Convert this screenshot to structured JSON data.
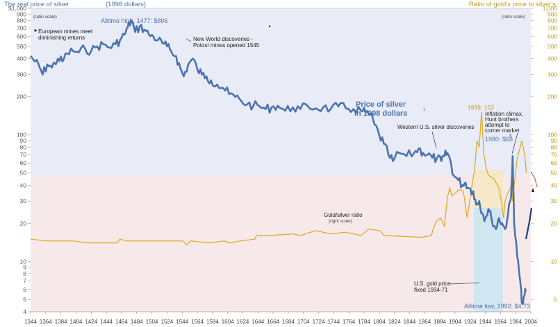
{
  "header": {
    "left_title": "The real price of silver",
    "left_subtitle": "(1998 dollars)",
    "left_scale_note": "(ratio scale)",
    "right_title": "Ratio of gold's price to silver's",
    "right_scale_note": "(ratio scale)"
  },
  "annotations": {
    "alltime_high": "Alltime high, 1477: $806",
    "european_line1": "European mines meet",
    "european_line2": "diminishing returns",
    "newworld_line1": "New World discoveries -",
    "newworld_line2": "Potosí mines opened 1545",
    "price_label_line1": "Price of silver",
    "price_label_line2": "in 1998 dollars",
    "price_label_mark": "¹",
    "western": "Western U.S. silver discoveries",
    "ratio1939": "1939: 153",
    "inflation_line1": "Inflation climax,",
    "inflation_line2": "Hunt brothers",
    "inflation_line3": "attempt to",
    "inflation_line4": "corner market",
    "ratio1980": "1980: $68",
    "ratio1980_mark": "²",
    "goldsilver_line1": "Gold/silver ratio",
    "goldsilver_line2": "(right scale)",
    "usgold_line1": "U.S. gold price",
    "usgold_line2": "fixed 1934-71",
    "alltime_low": "Alltime low, 1992: $4.73"
  },
  "colors": {
    "silver": "#4a72b0",
    "ratio": "#d9a91a",
    "upper_band": "#e9ecf6",
    "lower_band": "#f7e9ea"
  },
  "chart_data": {
    "type": "line",
    "x_range": [
      1344,
      2004
    ],
    "left_axis": {
      "scale": "log",
      "range": [
        4,
        1000
      ],
      "ticks": [
        4,
        5,
        6,
        7,
        8,
        9,
        10,
        20,
        30,
        40,
        50,
        60,
        70,
        80,
        90,
        100,
        200,
        300,
        400,
        500,
        600,
        700,
        800,
        900,
        1000
      ],
      "tick_labels": [
        "4",
        "5",
        "6",
        "7",
        "8",
        "9",
        "10",
        "20",
        "30",
        "40",
        "50",
        "60",
        "70",
        "80",
        "90",
        "100",
        "200",
        "300",
        "400",
        "500",
        "600",
        "700",
        "800",
        "900",
        "$1,000"
      ]
    },
    "right_axis": {
      "scale": "log",
      "range": [
        4,
        1000
      ],
      "ticks": [
        5,
        10,
        20,
        30,
        40,
        50,
        60,
        70,
        80,
        90,
        100,
        200,
        300,
        400,
        500,
        600,
        700,
        800,
        900,
        1000
      ],
      "tick_labels": [
        "5",
        "10",
        "20",
        "30",
        "40",
        "50",
        "60",
        "70",
        "80",
        "90",
        "100",
        "200",
        "300",
        "400",
        "500",
        "600",
        "700",
        "800",
        "900",
        "1,000"
      ]
    },
    "x_tick_labels": [
      "1344",
      "1364",
      "1384",
      "1404",
      "1424",
      "1444",
      "1464",
      "1484",
      "1504",
      "1524",
      "1544",
      "1564",
      "1584",
      "1604",
      "1624",
      "1644",
      "1664",
      "1684",
      "1704",
      "1724",
      "1744",
      "1764",
      "1784",
      "1804",
      "1824",
      "1844",
      "1864",
      "1884",
      "1904",
      "1924",
      "1944",
      "1964",
      "1984",
      "2004"
    ],
    "series": [
      {
        "name": "Price of silver in 1998 dollars",
        "axis": "left",
        "points": [
          [
            1344,
            420
          ],
          [
            1350,
            380
          ],
          [
            1356,
            340
          ],
          [
            1360,
            300
          ],
          [
            1366,
            360
          ],
          [
            1372,
            340
          ],
          [
            1380,
            400
          ],
          [
            1386,
            380
          ],
          [
            1392,
            440
          ],
          [
            1400,
            460
          ],
          [
            1408,
            450
          ],
          [
            1416,
            480
          ],
          [
            1424,
            460
          ],
          [
            1432,
            500
          ],
          [
            1440,
            520
          ],
          [
            1448,
            490
          ],
          [
            1456,
            520
          ],
          [
            1462,
            560
          ],
          [
            1468,
            620
          ],
          [
            1472,
            700
          ],
          [
            1477,
            806
          ],
          [
            1482,
            650
          ],
          [
            1488,
            720
          ],
          [
            1494,
            680
          ],
          [
            1500,
            620
          ],
          [
            1506,
            600
          ],
          [
            1512,
            560
          ],
          [
            1518,
            530
          ],
          [
            1524,
            500
          ],
          [
            1530,
            450
          ],
          [
            1536,
            420
          ],
          [
            1542,
            330
          ],
          [
            1546,
            290
          ],
          [
            1552,
            360
          ],
          [
            1558,
            400
          ],
          [
            1564,
            330
          ],
          [
            1570,
            300
          ],
          [
            1576,
            290
          ],
          [
            1582,
            270
          ],
          [
            1590,
            250
          ],
          [
            1598,
            235
          ],
          [
            1606,
            210
          ],
          [
            1614,
            200
          ],
          [
            1622,
            185
          ],
          [
            1630,
            175
          ],
          [
            1638,
            170
          ],
          [
            1646,
            168
          ],
          [
            1654,
            160
          ],
          [
            1662,
            165
          ],
          [
            1670,
            170
          ],
          [
            1680,
            155
          ],
          [
            1690,
            165
          ],
          [
            1700,
            160
          ],
          [
            1710,
            168
          ],
          [
            1720,
            162
          ],
          [
            1730,
            165
          ],
          [
            1740,
            160
          ],
          [
            1750,
            168
          ],
          [
            1760,
            162
          ],
          [
            1770,
            160
          ],
          [
            1780,
            155
          ],
          [
            1786,
            150
          ],
          [
            1792,
            145
          ],
          [
            1798,
            120
          ],
          [
            1804,
            100
          ],
          [
            1810,
            85
          ],
          [
            1816,
            70
          ],
          [
            1822,
            62
          ],
          [
            1830,
            72
          ],
          [
            1840,
            68
          ],
          [
            1850,
            72
          ],
          [
            1856,
            78
          ],
          [
            1862,
            72
          ],
          [
            1868,
            70
          ],
          [
            1874,
            66
          ],
          [
            1880,
            65
          ],
          [
            1886,
            62
          ],
          [
            1890,
            68
          ],
          [
            1894,
            72
          ],
          [
            1898,
            62
          ],
          [
            1902,
            48
          ],
          [
            1908,
            44
          ],
          [
            1914,
            40
          ],
          [
            1918,
            42
          ],
          [
            1922,
            38
          ],
          [
            1928,
            36
          ],
          [
            1932,
            28
          ],
          [
            1936,
            30
          ],
          [
            1940,
            24
          ],
          [
            1944,
            22
          ],
          [
            1948,
            26
          ],
          [
            1952,
            22
          ],
          [
            1958,
            18
          ],
          [
            1962,
            22
          ],
          [
            1966,
            20
          ],
          [
            1970,
            18
          ],
          [
            1974,
            24
          ],
          [
            1978,
            32
          ],
          [
            1980,
            68
          ],
          [
            1982,
            20
          ],
          [
            1986,
            11
          ],
          [
            1990,
            7
          ],
          [
            1992,
            4.73
          ],
          [
            1996,
            5.5
          ],
          [
            1998,
            5.8
          ]
        ]
      },
      {
        "name": "Gold/silver ratio",
        "axis": "right",
        "points": [
          [
            1344,
            15
          ],
          [
            1365,
            14.5
          ],
          [
            1400,
            14.5
          ],
          [
            1420,
            14
          ],
          [
            1458,
            14
          ],
          [
            1462,
            15
          ],
          [
            1470,
            14.5
          ],
          [
            1520,
            14.5
          ],
          [
            1545,
            14.5
          ],
          [
            1550,
            13.5
          ],
          [
            1555,
            14.5
          ],
          [
            1580,
            14
          ],
          [
            1600,
            14.5
          ],
          [
            1606,
            14
          ],
          [
            1620,
            14.5
          ],
          [
            1640,
            15
          ],
          [
            1642,
            16
          ],
          [
            1660,
            16
          ],
          [
            1690,
            16.5
          ],
          [
            1700,
            16
          ],
          [
            1720,
            17.5
          ],
          [
            1740,
            16.5
          ],
          [
            1760,
            17
          ],
          [
            1780,
            16
          ],
          [
            1790,
            18
          ],
          [
            1805,
            17.5
          ],
          [
            1810,
            16
          ],
          [
            1830,
            15.8
          ],
          [
            1860,
            15.5
          ],
          [
            1873,
            16
          ],
          [
            1875,
            18
          ],
          [
            1880,
            21
          ],
          [
            1885,
            22
          ],
          [
            1890,
            19
          ],
          [
            1894,
            32
          ],
          [
            1897,
            38
          ],
          [
            1900,
            33
          ],
          [
            1905,
            35
          ],
          [
            1910,
            37
          ],
          [
            1915,
            36
          ],
          [
            1920,
            22
          ],
          [
            1925,
            35
          ],
          [
            1930,
            55
          ],
          [
            1933,
            90
          ],
          [
            1936,
            80
          ],
          [
            1939,
            153
          ],
          [
            1942,
            70
          ],
          [
            1945,
            55
          ],
          [
            1948,
            48
          ],
          [
            1955,
            45
          ],
          [
            1962,
            38
          ],
          [
            1966,
            28
          ],
          [
            1968,
            22
          ],
          [
            1970,
            30
          ],
          [
            1974,
            35
          ],
          [
            1979,
            40
          ],
          [
            1980,
            30
          ],
          [
            1982,
            40
          ],
          [
            1986,
            65
          ],
          [
            1990,
            80
          ],
          [
            1992,
            90
          ],
          [
            1996,
            70
          ],
          [
            1998,
            50
          ]
        ]
      }
    ],
    "bands": [
      {
        "axis": "left",
        "from": 50,
        "to": 1000,
        "label": "upper"
      },
      {
        "axis": "left",
        "from": 4,
        "to": 50,
        "label": "lower"
      }
    ],
    "annotation_points": [
      {
        "year": 1477,
        "value": 806
      },
      {
        "year": 1939,
        "ratio": 153
      },
      {
        "year": 1980,
        "value": 68
      },
      {
        "year": 1992,
        "value": 4.73
      }
    ]
  }
}
